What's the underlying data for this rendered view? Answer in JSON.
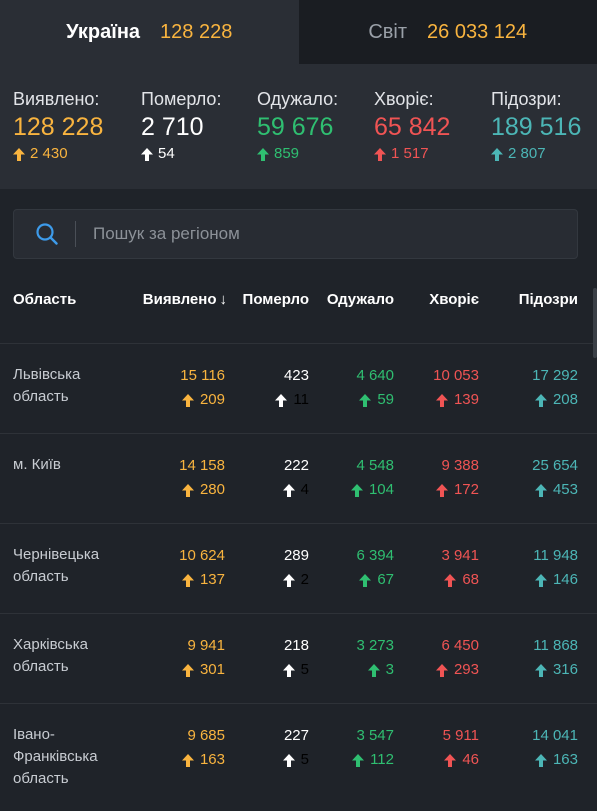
{
  "tabs": [
    {
      "label": "Україна",
      "value": "128 228"
    },
    {
      "label": "Світ",
      "value": "26 033 124"
    }
  ],
  "summary": [
    {
      "label": "Виявлено:",
      "value": "128 228",
      "delta": "2 430",
      "color": "#f9b43f",
      "delta_color": "#f9b43f",
      "arrow_color": "#f9b43f"
    },
    {
      "label": "Померло:",
      "value": "2 710",
      "delta": "54",
      "color": "#ffffff",
      "delta_color": "#ffffff",
      "arrow_color": "#ffffff"
    },
    {
      "label": "Одужало:",
      "value": "59 676",
      "delta": "859",
      "color": "#2fbf71",
      "delta_color": "#2fbf71",
      "arrow_color": "#2fbf71"
    },
    {
      "label": "Хворіє:",
      "value": "65 842",
      "delta": "1 517",
      "color": "#f05454",
      "delta_color": "#f05454",
      "arrow_color": "#f05454"
    },
    {
      "label": "Підозри:",
      "value": "189 516",
      "delta": "2 807",
      "color": "#4cb6b6",
      "delta_color": "#4cb6b6",
      "arrow_color": "#4cb6b6"
    }
  ],
  "search": {
    "placeholder": "Пошук за регіоном"
  },
  "table": {
    "headers": [
      "Область",
      "Виявлено",
      "Померло",
      "Одужало",
      "Хворіє",
      "Підозри"
    ],
    "sort_indicator": "↓",
    "rows": [
      {
        "name": "Львівська область",
        "confirmed": "15 116",
        "confirmed_d": "209",
        "deaths": "423",
        "deaths_d": "11",
        "recovered": "4 640",
        "recovered_d": "59",
        "sick": "10 053",
        "sick_d": "139",
        "suspected": "17 292",
        "suspected_d": "208"
      },
      {
        "name": "м. Київ",
        "confirmed": "14 158",
        "confirmed_d": "280",
        "deaths": "222",
        "deaths_d": "4",
        "recovered": "4 548",
        "recovered_d": "104",
        "sick": "9 388",
        "sick_d": "172",
        "suspected": "25 654",
        "suspected_d": "453"
      },
      {
        "name": "Чернівецька область",
        "confirmed": "10 624",
        "confirmed_d": "137",
        "deaths": "289",
        "deaths_d": "2",
        "recovered": "6 394",
        "recovered_d": "67",
        "sick": "3 941",
        "sick_d": "68",
        "suspected": "11 948",
        "suspected_d": "146"
      },
      {
        "name": "Харківська область",
        "confirmed": "9 941",
        "confirmed_d": "301",
        "deaths": "218",
        "deaths_d": "5",
        "recovered": "3 273",
        "recovered_d": "3",
        "sick": "6 450",
        "sick_d": "293",
        "suspected": "11 868",
        "suspected_d": "316"
      },
      {
        "name": "Івано-Франківська область",
        "confirmed": "9 685",
        "confirmed_d": "163",
        "deaths": "227",
        "deaths_d": "5",
        "recovered": "3 547",
        "recovered_d": "112",
        "sick": "5 911",
        "sick_d": "46",
        "suspected": "14 041",
        "suspected_d": "163"
      }
    ]
  },
  "icons": {
    "search": "search-icon",
    "arrow": "arrow-up-icon",
    "sort": "sort-down-icon"
  }
}
